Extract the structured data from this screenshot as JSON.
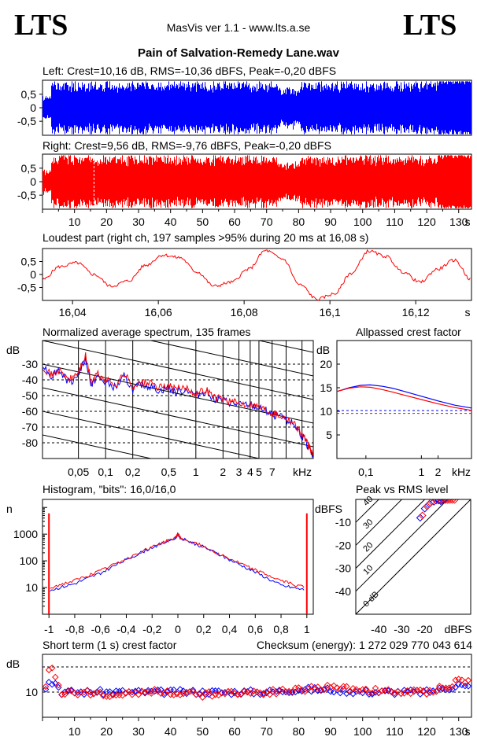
{
  "header": {
    "logo_left": "LTS",
    "logo_right": "LTS",
    "app_title": "MasVis ver 1.1 - www.lts.a.se",
    "file_name": "Pain of Salvation-Remedy Lane.wav"
  },
  "colors": {
    "left": "#0000ff",
    "right": "#ff0000",
    "grid": "#000000",
    "dashed": "#000000"
  },
  "chart_data": [
    {
      "id": "waveform_left",
      "type": "area",
      "title": "Left: Crest=10,16 dB, RMS=-10,36 dBFS, Peak=-0,20 dBFS",
      "ylim": [
        -1,
        1
      ],
      "yticks": [
        "0,5",
        "0",
        "-0,5"
      ],
      "series": [
        {
          "color": "#0000ff",
          "x_range_s": [
            0,
            134
          ],
          "peak": 0.98,
          "envelope": "dense full-scale"
        }
      ]
    },
    {
      "id": "waveform_right",
      "type": "area",
      "title": "Right: Crest=9,56 dB, RMS=-9,76 dBFS, Peak=-0,20 dBFS",
      "ylim": [
        -1,
        1
      ],
      "yticks": [
        "0,5",
        "0",
        "-0,5"
      ],
      "xticks": [
        "10",
        "20",
        "30",
        "40",
        "50",
        "60",
        "70",
        "80",
        "90",
        "100",
        "110",
        "120",
        "130"
      ],
      "xunit": "s",
      "marker_s": 16.08,
      "series": [
        {
          "color": "#ff0000",
          "x_range_s": [
            0,
            134
          ],
          "peak": 0.98
        }
      ]
    },
    {
      "id": "loudest_part",
      "type": "line",
      "title": "Loudest part (right ch, 197 samples >95% during 20 ms at 16,08 s)",
      "xlim": [
        16.033,
        16.133
      ],
      "ylim": [
        -1,
        1
      ],
      "xticks": [
        "16,04",
        "16,06",
        "16,08",
        "16,1",
        "16,12"
      ],
      "xunit": "s",
      "yticks": [
        "0,5",
        "0",
        "-0,5"
      ],
      "series": [
        {
          "name": "right",
          "color": "#ff0000",
          "x": [
            16.033,
            16.037,
            16.041,
            16.045,
            16.049,
            16.053,
            16.057,
            16.061,
            16.065,
            16.069,
            16.073,
            16.077,
            16.081,
            16.085,
            16.089,
            16.093,
            16.097,
            16.101,
            16.105,
            16.109,
            16.113,
            16.117,
            16.121,
            16.125,
            16.129,
            16.133
          ],
          "y": [
            -0.2,
            0.3,
            0.45,
            0.0,
            -0.45,
            -0.25,
            0.35,
            0.75,
            0.65,
            0.1,
            -0.45,
            -0.3,
            0.2,
            0.92,
            0.6,
            -0.4,
            -0.95,
            -0.75,
            0.05,
            0.9,
            0.7,
            0.1,
            -0.3,
            0.2,
            0.55,
            -0.2
          ]
        }
      ]
    },
    {
      "id": "spectrum",
      "type": "line",
      "title": "Normalized average spectrum, 135 frames",
      "ylabel": "dB",
      "xunit": "kHz",
      "xlim": [
        0.02,
        20
      ],
      "ylim": [
        -90,
        -15
      ],
      "yticks": [
        "-30",
        "-40",
        "-50",
        "-60",
        "-70",
        "-80"
      ],
      "xticks": [
        "0,05",
        "0,1",
        "0,2",
        "0,5",
        "1",
        "2",
        "3",
        "4",
        "5",
        "7"
      ],
      "series": [
        {
          "name": "left",
          "color": "#0000ff",
          "x": [
            0.02,
            0.025,
            0.03,
            0.04,
            0.05,
            0.06,
            0.07,
            0.08,
            0.1,
            0.13,
            0.16,
            0.2,
            0.25,
            0.3,
            0.4,
            0.5,
            0.6,
            0.8,
            1.0,
            1.3,
            1.6,
            2.0,
            2.5,
            3.0,
            4.0,
            5.0,
            6.0,
            7.0,
            8.0,
            10.0,
            12.0,
            14.0,
            16.0,
            18.0,
            20.0
          ],
          "y": [
            -30,
            -38,
            -33,
            -42,
            -36,
            -27,
            -44,
            -38,
            -42,
            -45,
            -38,
            -46,
            -43,
            -44,
            -47,
            -45,
            -48,
            -46,
            -50,
            -47,
            -52,
            -53,
            -55,
            -56,
            -56,
            -58,
            -60,
            -62,
            -63,
            -65,
            -68,
            -73,
            -78,
            -84,
            -89
          ]
        },
        {
          "name": "right",
          "color": "#ff0000",
          "x": [
            0.02,
            0.025,
            0.03,
            0.04,
            0.05,
            0.06,
            0.07,
            0.08,
            0.1,
            0.13,
            0.16,
            0.2,
            0.25,
            0.3,
            0.4,
            0.5,
            0.6,
            0.8,
            1.0,
            1.3,
            1.6,
            2.0,
            2.5,
            3.0,
            4.0,
            5.0,
            6.0,
            7.0,
            8.0,
            10.0,
            12.0,
            14.0,
            16.0,
            18.0,
            20.0
          ],
          "y": [
            -31,
            -37,
            -34,
            -40,
            -35,
            -25,
            -42,
            -36,
            -40,
            -43,
            -36,
            -44,
            -42,
            -42,
            -45,
            -44,
            -46,
            -45,
            -49,
            -46,
            -51,
            -52,
            -54,
            -55,
            -55,
            -57,
            -59,
            -61,
            -62,
            -64,
            -67,
            -72,
            -77,
            -83,
            -88
          ]
        }
      ]
    },
    {
      "id": "allpassed_crest",
      "type": "line",
      "title": "Allpassed crest factor",
      "ylabel": "dB",
      "xunit": "kHz",
      "xlim": [
        0.03,
        8
      ],
      "ylim": [
        0,
        25
      ],
      "yticks": [
        "20",
        "15",
        "10",
        "5"
      ],
      "xticks": [
        "0,1",
        "1",
        "2"
      ],
      "series": [
        {
          "name": "left",
          "color": "#0000ff",
          "x": [
            0.03,
            0.05,
            0.08,
            0.12,
            0.2,
            0.3,
            0.5,
            1,
            2,
            4,
            8
          ],
          "y": [
            14.2,
            15.0,
            15.5,
            15.6,
            15.3,
            14.9,
            14.2,
            13.2,
            12.2,
            11.3,
            10.7
          ]
        },
        {
          "name": "right",
          "color": "#ff0000",
          "x": [
            0.03,
            0.05,
            0.08,
            0.12,
            0.2,
            0.3,
            0.5,
            1,
            2,
            4,
            8
          ],
          "y": [
            14.2,
            14.9,
            15.2,
            15.1,
            14.6,
            14.1,
            13.4,
            12.5,
            11.6,
            10.8,
            10.2
          ]
        }
      ],
      "reference_lines": [
        {
          "color": "#0000ff",
          "y": 10.16
        },
        {
          "color": "#ff0000",
          "y": 9.56
        }
      ]
    },
    {
      "id": "histogram",
      "type": "line",
      "title": "Histogram, \"bits\": 16,0/16,0",
      "ylabel": "n",
      "ylog": true,
      "xlim": [
        -1.05,
        1.05
      ],
      "ylim": [
        1,
        20000
      ],
      "yticks": [
        "1000",
        "100",
        "10"
      ],
      "xticks": [
        "-1",
        "-0,8",
        "-0,6",
        "-0,4",
        "-0,2",
        "0",
        "0,2",
        "0,4",
        "0,6",
        "0,8",
        "1"
      ],
      "series": [
        {
          "name": "left",
          "color": "#0000ff",
          "x": [
            -0.99,
            -0.8,
            -0.6,
            -0.4,
            -0.2,
            -0.02,
            0.0,
            0.02,
            0.2,
            0.4,
            0.6,
            0.8,
            0.99
          ],
          "y": [
            8,
            14,
            35,
            110,
            320,
            700,
            1000,
            700,
            330,
            110,
            38,
            12,
            8
          ]
        },
        {
          "name": "right",
          "color": "#ff0000",
          "x": [
            -0.99,
            -0.8,
            -0.6,
            -0.4,
            -0.2,
            -0.02,
            0.0,
            0.02,
            0.2,
            0.4,
            0.6,
            0.8,
            0.99
          ],
          "y": [
            10,
            18,
            42,
            120,
            340,
            720,
            1000,
            720,
            350,
            120,
            45,
            18,
            10
          ]
        }
      ],
      "edge_spikes": [
        {
          "x": -1,
          "y": 6000
        },
        {
          "x": 1,
          "y": 6000
        }
      ]
    },
    {
      "id": "peak_vs_rms",
      "type": "scatter",
      "title": "Peak vs RMS level",
      "ylabel": "dBFS",
      "xlabel": "dBFS",
      "xlim": [
        -50,
        0
      ],
      "ylim": [
        -50,
        0
      ],
      "xticks": [
        "-40",
        "-30",
        "-20"
      ],
      "yticks": [
        "-10",
        "-20",
        "-30",
        "-40"
      ],
      "diagonal_labels": [
        "40",
        "30",
        "20",
        "10",
        "0 dB"
      ],
      "series": [
        {
          "name": "left",
          "color": "#0000ff",
          "x": [
            -22,
            -20,
            -18,
            -16,
            -14,
            -12,
            -13,
            -11,
            -10
          ],
          "y": [
            -8,
            -4,
            -2,
            -1,
            -0.5,
            -0.3,
            -0.8,
            -0.2,
            -0.2
          ]
        },
        {
          "name": "right",
          "color": "#ff0000",
          "x": [
            -21,
            -19,
            -17,
            -15,
            -13,
            -11,
            -10,
            -9,
            -8,
            -7
          ],
          "y": [
            -7,
            -3,
            -1,
            -0.5,
            -0.3,
            -0.2,
            -0.2,
            -0.2,
            -0.2,
            -0.2
          ]
        }
      ]
    },
    {
      "id": "short_term_crest",
      "type": "scatter",
      "title": "Short term (1 s) crest factor",
      "checksum": "Checksum (energy):  1 272 029 770 043 614",
      "ylabel": "dB",
      "xunit": "s",
      "xlim": [
        0,
        134
      ],
      "ylim": [
        0,
        25
      ],
      "yticks": [
        "10"
      ],
      "xticks": [
        "10",
        "20",
        "30",
        "40",
        "50",
        "60",
        "70",
        "80",
        "90",
        "100",
        "110",
        "120",
        "130"
      ],
      "dashed_levels": [
        10,
        20
      ],
      "series": [
        {
          "name": "left",
          "color": "#0000ff",
          "x": [
            1,
            2,
            3,
            4,
            6,
            10,
            20,
            30,
            40,
            50,
            60,
            70,
            80,
            90,
            100,
            110,
            120,
            128,
            130,
            132
          ],
          "y": [
            12,
            15,
            13,
            14,
            10,
            10,
            10,
            10,
            10,
            10,
            10,
            10,
            11,
            11,
            10,
            10,
            10,
            12,
            13,
            12
          ]
        },
        {
          "name": "right",
          "color": "#ff0000",
          "x": [
            1,
            2,
            3,
            4,
            6,
            10,
            20,
            30,
            40,
            50,
            60,
            70,
            80,
            90,
            100,
            110,
            120,
            128,
            130,
            132
          ],
          "y": [
            13,
            18,
            20,
            16,
            10,
            10,
            9,
            10,
            10,
            9,
            10,
            10,
            11,
            12,
            11,
            10,
            10,
            13,
            15,
            14
          ]
        }
      ]
    }
  ]
}
